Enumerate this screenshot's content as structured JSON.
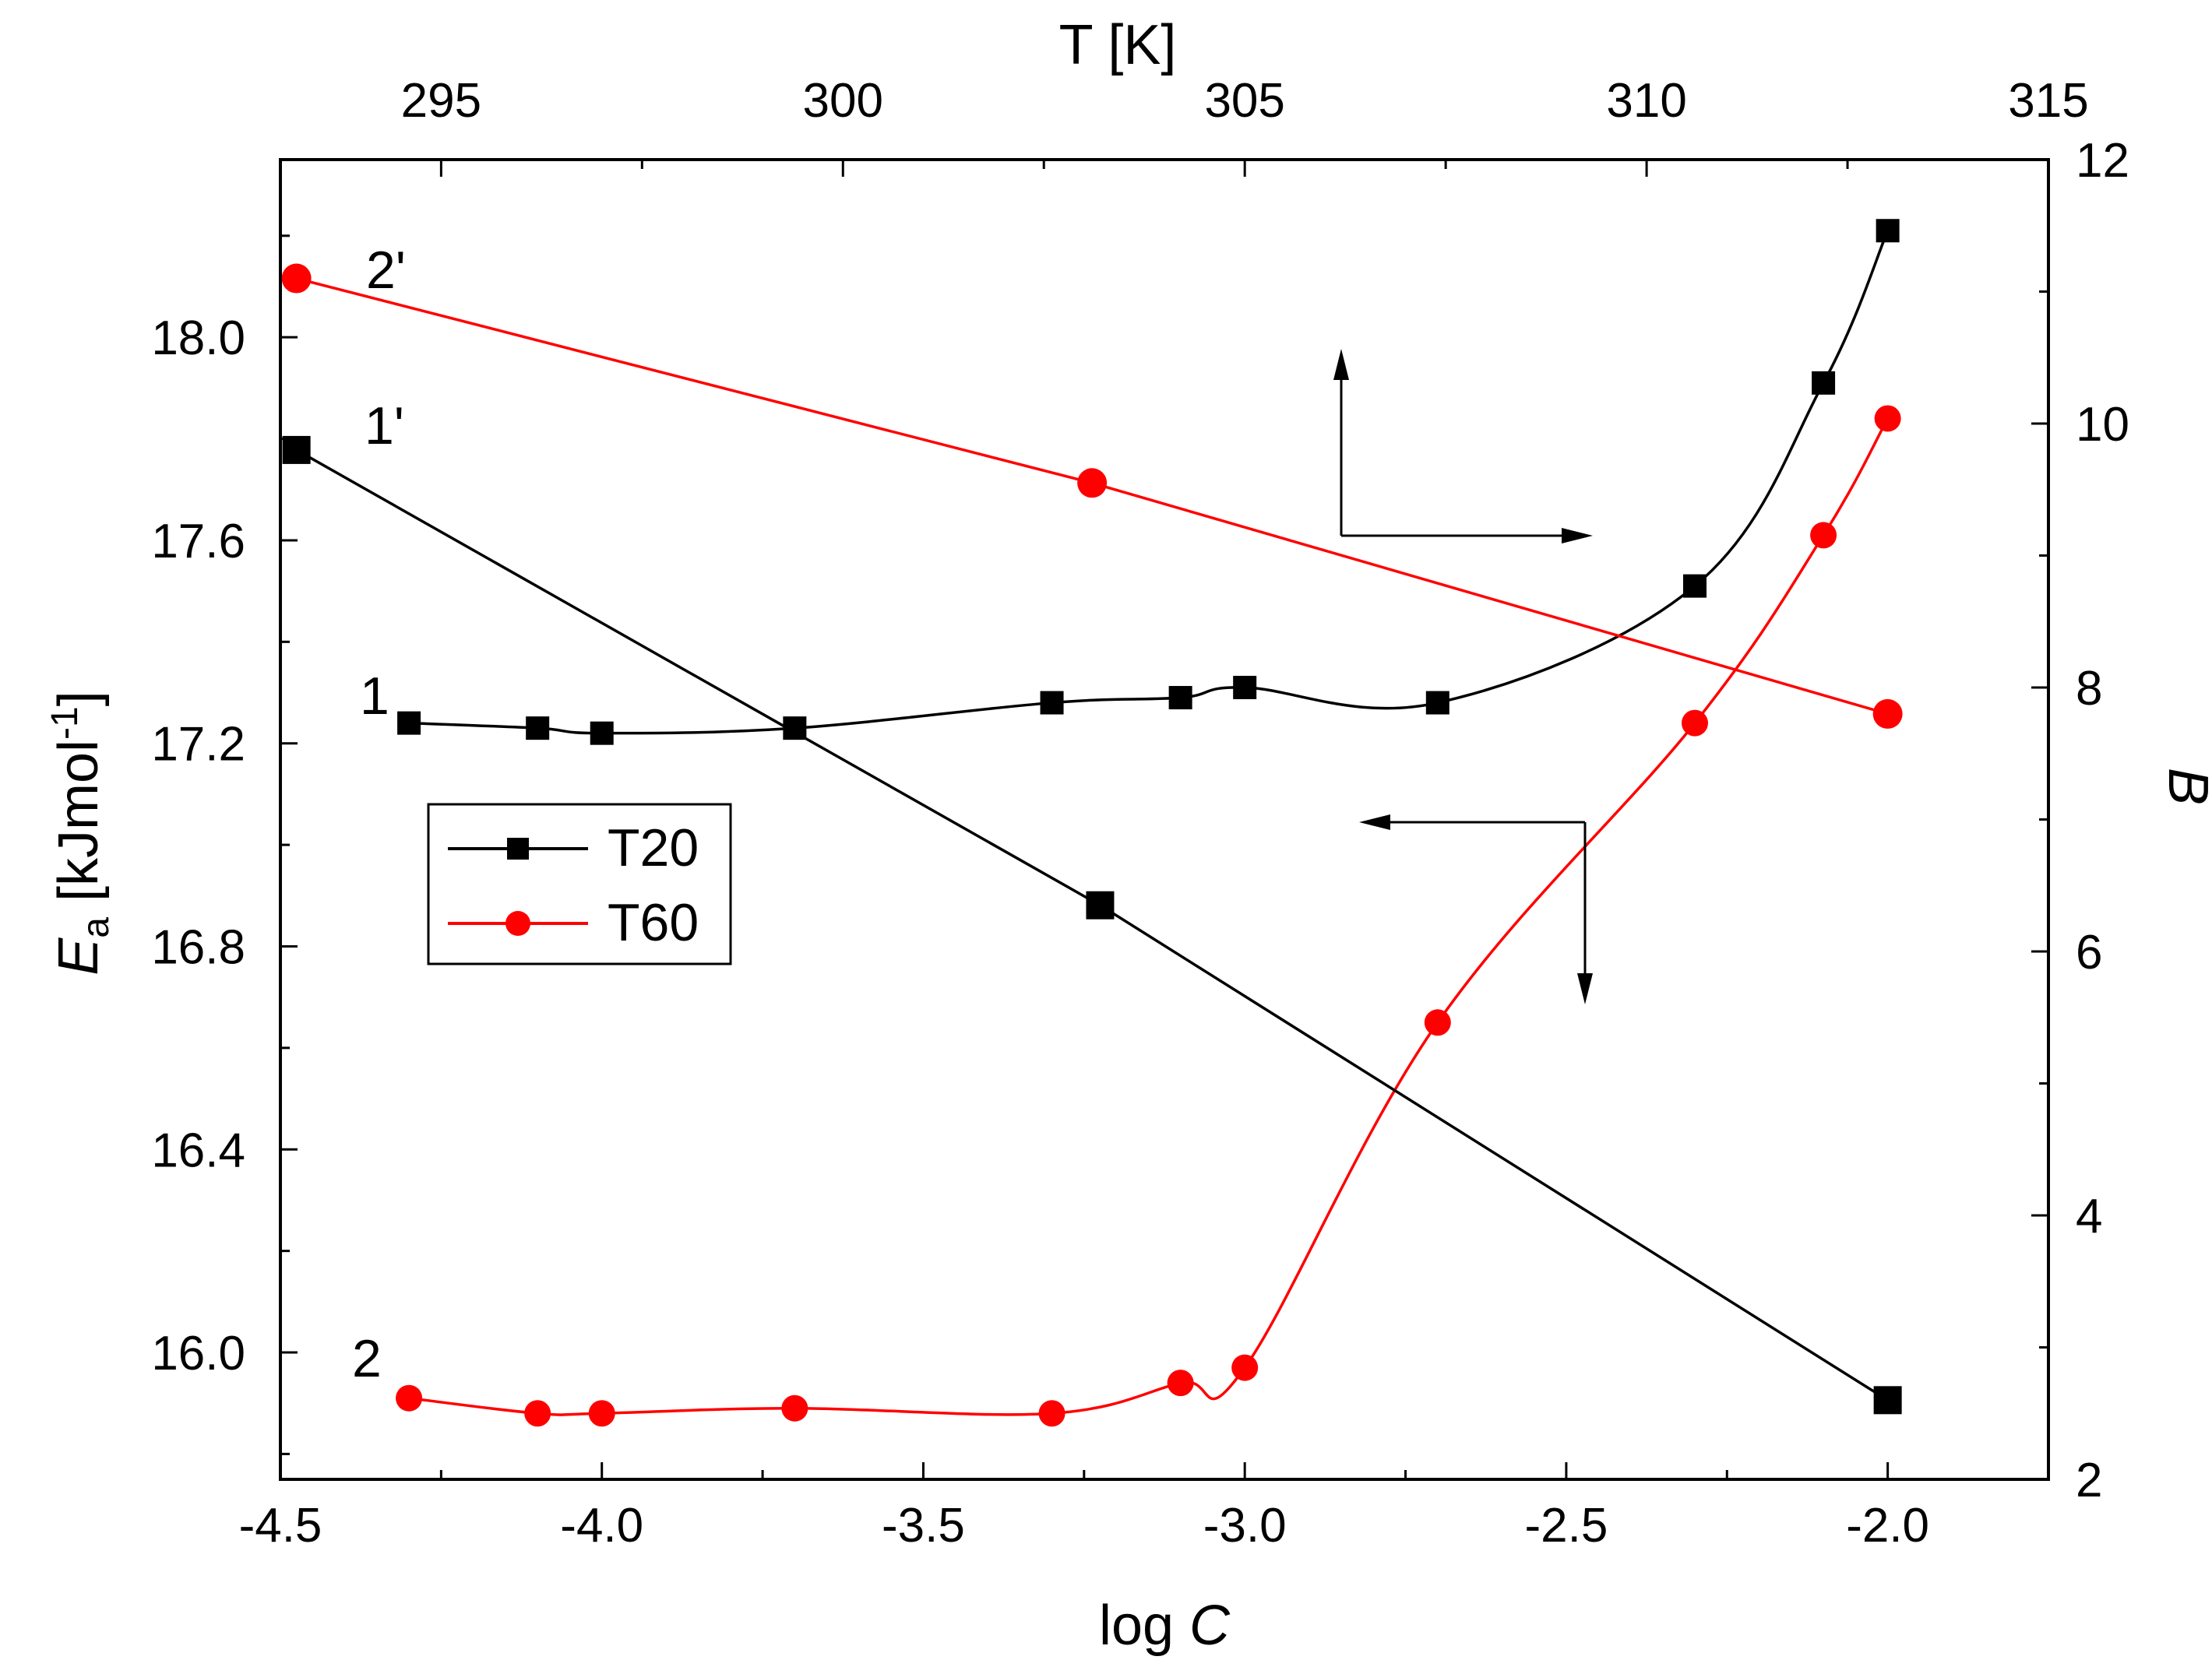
{
  "chart_data": {
    "type": "line",
    "xlabel_prefix": "log ",
    "xlabel_var": "C",
    "top_xlabel": "T [K]",
    "ylabel_var": "E",
    "ylabel_sub": "a",
    "ylabel_unit_main": " [kJmol",
    "ylabel_unit_sup": "-1",
    "ylabel_unit_end": "]",
    "y2label": "B",
    "xlim": [
      -4.5,
      -1.75
    ],
    "ylim": [
      15.75,
      18.35
    ],
    "y2lim": [
      2,
      12
    ],
    "top_xlim": [
      293.0,
      315.0
    ],
    "x_ticks": [
      "-4.5",
      "-4.0",
      "-3.5",
      "-3.0",
      "-2.5",
      "-2.0"
    ],
    "y_ticks": [
      "16.0",
      "16.4",
      "16.8",
      "17.2",
      "17.6",
      "18.0"
    ],
    "y2_ticks": [
      "2",
      "4",
      "6",
      "8",
      "10",
      "12"
    ],
    "top_ticks": [
      "295",
      "300",
      "305",
      "310",
      "315"
    ],
    "series": [
      {
        "name": "T20",
        "label": "1",
        "color": "#000000",
        "marker": "square",
        "axis": "left",
        "x": [
          -4.3,
          -4.1,
          -4.0,
          -3.7,
          -3.3,
          -3.1,
          -3.0,
          -2.7,
          -2.3,
          -2.1,
          -2.0
        ],
        "y": [
          17.24,
          17.23,
          17.22,
          17.23,
          17.28,
          17.29,
          17.31,
          17.28,
          17.51,
          17.91,
          18.21
        ]
      },
      {
        "name": "T60",
        "label": "2",
        "color": "#ff0000",
        "marker": "circle",
        "axis": "left",
        "x": [
          -4.3,
          -4.1,
          -4.0,
          -3.7,
          -3.3,
          -3.1,
          -3.0,
          -2.7,
          -2.3,
          -2.1,
          -2.0
        ],
        "y": [
          15.91,
          15.88,
          15.88,
          15.89,
          15.88,
          15.94,
          15.97,
          16.65,
          17.24,
          17.61,
          17.84
        ]
      },
      {
        "name": "T20 B",
        "label": "1'",
        "color": "#000000",
        "marker": "square",
        "axis": "right",
        "T": [
          293.2,
          303.2,
          313.0
        ],
        "B": [
          9.8,
          6.35,
          2.6
        ]
      },
      {
        "name": "T60 B",
        "label": "2'",
        "color": "#ff0000",
        "marker": "circle",
        "axis": "right",
        "T": [
          293.2,
          303.1,
          313.0
        ],
        "B": [
          11.1,
          9.55,
          7.8
        ]
      }
    ],
    "legend": {
      "position": "middle-left",
      "entries": [
        {
          "label": "T20",
          "color": "#000000",
          "marker": "square"
        },
        {
          "label": "T60",
          "color": "#ff0000",
          "marker": "circle"
        }
      ]
    },
    "annotations": [
      "arrow up/right toward right axis (B)",
      "arrow left/down toward left axis (Ea)"
    ]
  }
}
